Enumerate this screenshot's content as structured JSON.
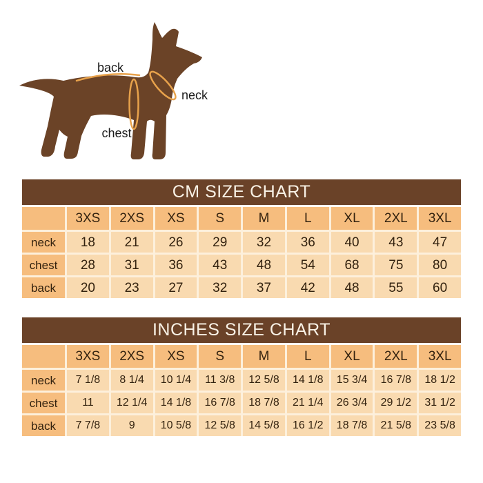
{
  "diagram": {
    "back_label": "back",
    "neck_label": "neck",
    "chest_label": "chest",
    "colors": {
      "dog_body": "#6b4327",
      "measurement_line": "#e8a24b",
      "label_text": "#1c1c1c"
    }
  },
  "chart_data": [
    {
      "type": "table",
      "title": "CM SIZE CHART",
      "unit": "cm",
      "columns": [
        "3XS",
        "2XS",
        "XS",
        "S",
        "M",
        "L",
        "XL",
        "2XL",
        "3XL"
      ],
      "rows": [
        {
          "label": "neck",
          "values": [
            "18",
            "21",
            "26",
            "29",
            "32",
            "36",
            "40",
            "43",
            "47"
          ]
        },
        {
          "label": "chest",
          "values": [
            "28",
            "31",
            "36",
            "43",
            "48",
            "54",
            "68",
            "75",
            "80"
          ]
        },
        {
          "label": "back",
          "values": [
            "20",
            "23",
            "27",
            "32",
            "37",
            "42",
            "48",
            "55",
            "60"
          ]
        }
      ]
    },
    {
      "type": "table",
      "title": "INCHES SIZE CHART",
      "unit": "inches",
      "columns": [
        "3XS",
        "2XS",
        "XS",
        "S",
        "M",
        "L",
        "XL",
        "2XL",
        "3XL"
      ],
      "rows": [
        {
          "label": "neck",
          "values": [
            "7 1/8",
            "8 1/4",
            "10 1/4",
            "11 3/8",
            "12 5/8",
            "14 1/8",
            "15 3/4",
            "16 7/8",
            "18 1/2"
          ]
        },
        {
          "label": "chest",
          "values": [
            "11",
            "12 1/4",
            "14 1/8",
            "16 7/8",
            "18 7/8",
            "21 1/4",
            "26 3/4",
            "29 1/2",
            "31 1/2"
          ]
        },
        {
          "label": "back",
          "values": [
            "7 7/8",
            "9",
            "10 5/8",
            "12 5/8",
            "14 5/8",
            "16 1/2",
            "18 7/8",
            "21 5/8",
            "23 5/8"
          ]
        }
      ]
    }
  ],
  "colors": {
    "title_bar": "#6a4228",
    "title_text": "#f8f1e5",
    "header_cell": "#f6bd7e",
    "value_cell": "#f9dab0",
    "grid_line": "#fdf0dc",
    "table_text": "#33220f",
    "page_background": "#ffffff"
  }
}
